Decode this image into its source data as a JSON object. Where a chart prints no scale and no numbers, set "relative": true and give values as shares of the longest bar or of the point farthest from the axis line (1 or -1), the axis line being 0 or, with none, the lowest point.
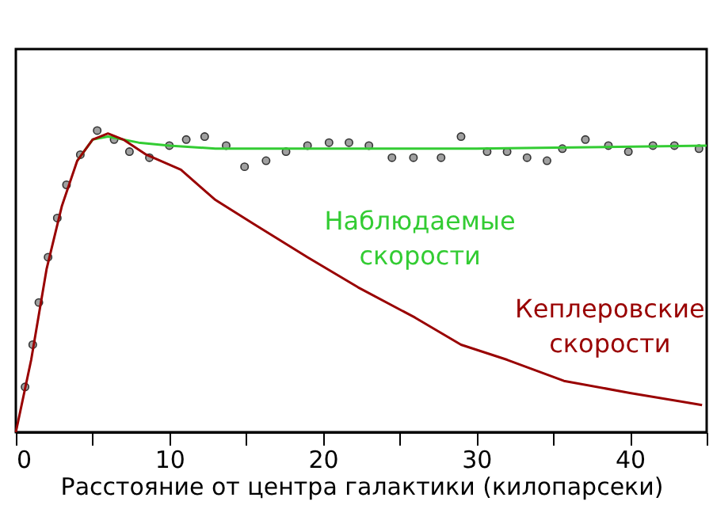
{
  "chart_data": {
    "type": "line",
    "relative": true,
    "xlabel": "Расстояние от центра галактики (килопарсеки)",
    "xlim": [
      0,
      45
    ],
    "xticks": [
      0,
      {
        "value": 5,
        "label": null
      },
      10,
      {
        "value": 15,
        "label": null
      },
      20,
      {
        "value": 25,
        "label": null
      },
      30,
      {
        "value": 35,
        "label": null
      },
      40,
      {
        "value": 45,
        "label": null
      }
    ],
    "grid": false,
    "line_style": "solid",
    "series": [
      {
        "type": "scatter",
        "marker": "circle",
        "color": "#a0a0a0",
        "x": [
          0.6,
          1.1,
          1.5,
          2.1,
          2.7,
          3.3,
          4.2,
          5.3,
          6.4,
          7.4,
          8.7,
          10.0,
          11.1,
          12.3,
          13.7,
          14.9,
          16.3,
          17.6,
          19.0,
          20.4,
          21.7,
          23.0,
          24.5,
          25.9,
          27.7,
          29.0,
          30.7,
          32.0,
          33.3,
          34.6,
          35.6,
          37.1,
          38.6,
          39.9,
          41.5,
          42.9,
          44.5
        ],
        "values": [
          0.15,
          0.29,
          0.43,
          0.58,
          0.71,
          0.82,
          0.92,
          1.0,
          0.97,
          0.93,
          0.91,
          0.95,
          0.97,
          0.98,
          0.95,
          0.88,
          0.9,
          0.93,
          0.95,
          0.96,
          0.96,
          0.95,
          0.91,
          0.91,
          0.91,
          0.98,
          0.93,
          0.93,
          0.91,
          0.9,
          0.94,
          0.97,
          0.95,
          0.93,
          0.95,
          0.95,
          0.94
        ]
      },
      {
        "name": "Наблюдаемые скорости",
        "color": "#33cc33",
        "x": [
          4,
          5,
          6,
          8,
          10,
          13,
          20,
          30,
          45
        ],
        "values": [
          0.9,
          0.97,
          0.98,
          0.96,
          0.95,
          0.94,
          0.94,
          0.94,
          0.95
        ]
      },
      {
        "name": "Кеплеровские скорости",
        "color": "#990000",
        "x": [
          0,
          1,
          2,
          3,
          4,
          5,
          6,
          7,
          8.5,
          10.75,
          13,
          15.5,
          19,
          22.3,
          26,
          29,
          32,
          35.7,
          40,
          44.7
        ],
        "values": [
          0,
          0.24,
          0.54,
          0.75,
          0.9,
          0.97,
          0.99,
          0.97,
          0.92,
          0.87,
          0.77,
          0.69,
          0.58,
          0.48,
          0.38,
          0.29,
          0.24,
          0.17,
          0.13,
          0.09
        ]
      }
    ]
  }
}
